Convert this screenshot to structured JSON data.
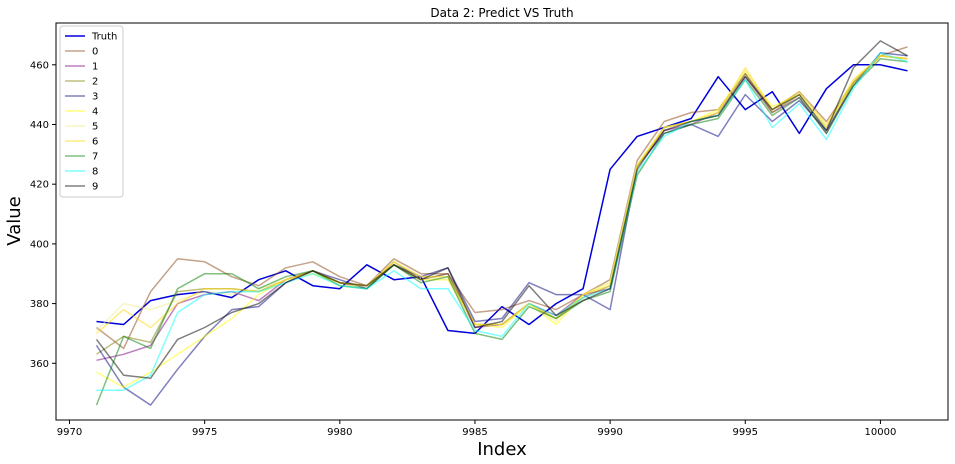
{
  "chart_data": {
    "type": "line",
    "title": "Data 2: Predict VS Truth",
    "xlabel": "Index",
    "ylabel": "Value",
    "xlim": [
      9969.5,
      10002.5
    ],
    "ylim": [
      341,
      474
    ],
    "xticks": [
      9970,
      9975,
      9980,
      9985,
      9990,
      9995,
      10000
    ],
    "yticks": [
      360,
      380,
      400,
      420,
      440,
      460
    ],
    "grid": false,
    "legend_position": "top-left",
    "x": [
      9971,
      9972,
      9973,
      9974,
      9975,
      9976,
      9977,
      9978,
      9979,
      9980,
      9981,
      9982,
      9983,
      9984,
      9985,
      9986,
      9987,
      9988,
      9989,
      9990,
      9991,
      9992,
      9993,
      9994,
      9995,
      9996,
      9997,
      9998,
      9999,
      10000,
      10001
    ],
    "series": [
      {
        "name": "Truth",
        "color": "#0000dd",
        "opacity": 1.0,
        "width": 1.5,
        "values": [
          374,
          373,
          381,
          383,
          384,
          382,
          388,
          391,
          386,
          385,
          393,
          388,
          389,
          371,
          370,
          379,
          373,
          380,
          385,
          425,
          436,
          439,
          442,
          456,
          445,
          451,
          437,
          452,
          460,
          460,
          458
        ]
      },
      {
        "name": "0",
        "color": "#8b4513",
        "opacity": 0.5,
        "width": 1.5,
        "values": [
          372,
          365,
          384,
          395,
          394,
          389,
          386,
          392,
          394,
          389,
          386,
          395,
          390,
          390,
          377,
          378,
          381,
          378,
          383,
          388,
          428,
          441,
          444,
          445,
          457,
          445,
          451,
          441,
          454,
          463,
          466
        ]
      },
      {
        "name": "1",
        "color": "#800080",
        "opacity": 0.5,
        "width": 1.5,
        "values": [
          361,
          363,
          366,
          380,
          383,
          384,
          381,
          388,
          391,
          387,
          386,
          393,
          388,
          390,
          372,
          373,
          380,
          376,
          383,
          385,
          426,
          438,
          440,
          444,
          456,
          444,
          449,
          437,
          454,
          463,
          462
        ]
      },
      {
        "name": "2",
        "color": "#808000",
        "opacity": 0.5,
        "width": 1.5,
        "values": [
          363,
          369,
          367,
          384,
          385,
          385,
          384,
          388,
          391,
          387,
          385,
          394,
          388,
          390,
          373,
          373,
          380,
          375,
          382,
          386,
          426,
          439,
          441,
          443,
          457,
          444,
          450,
          439,
          454,
          463,
          462
        ]
      },
      {
        "name": "3",
        "color": "#000080",
        "opacity": 0.5,
        "width": 1.5,
        "values": [
          366,
          352,
          346,
          358,
          369,
          378,
          379,
          387,
          391,
          388,
          385,
          393,
          389,
          392,
          374,
          375,
          387,
          383,
          383,
          378,
          426,
          437,
          440,
          436,
          450,
          441,
          448,
          438,
          453,
          464,
          463
        ]
      },
      {
        "name": "4",
        "color": "#ffff00",
        "opacity": 0.5,
        "width": 1.5,
        "values": [
          357,
          352,
          357,
          363,
          369,
          375,
          383,
          388,
          390,
          387,
          386,
          393,
          388,
          388,
          373,
          372,
          380,
          373,
          383,
          387,
          426,
          439,
          441,
          445,
          458,
          446,
          450,
          439,
          454,
          463,
          462
        ]
      },
      {
        "name": "5",
        "color": "#eeee88",
        "opacity": 0.5,
        "width": 1.5,
        "values": [
          371,
          380,
          378,
          381,
          384,
          383,
          385,
          388,
          390,
          386,
          386,
          394,
          389,
          388,
          373,
          373,
          380,
          374,
          383,
          387,
          427,
          439,
          441,
          444,
          458,
          445,
          450,
          439,
          455,
          463,
          462
        ]
      },
      {
        "name": "6",
        "color": "#ffd700",
        "opacity": 0.5,
        "width": 1.5,
        "values": [
          370,
          378,
          372,
          380,
          385,
          385,
          384,
          388,
          391,
          387,
          386,
          394,
          389,
          389,
          373,
          373,
          380,
          375,
          383,
          386,
          426,
          439,
          441,
          444,
          459,
          445,
          451,
          440,
          455,
          463,
          462
        ]
      },
      {
        "name": "7",
        "color": "#008000",
        "opacity": 0.5,
        "width": 1.5,
        "values": [
          346,
          369,
          365,
          385,
          390,
          390,
          385,
          389,
          391,
          386,
          385,
          393,
          387,
          389,
          370,
          368,
          379,
          375,
          381,
          384,
          423,
          437,
          440,
          442,
          455,
          443,
          449,
          437,
          453,
          462,
          461
        ]
      },
      {
        "name": "8",
        "color": "#00ffff",
        "opacity": 0.5,
        "width": 1.5,
        "values": [
          351,
          351,
          356,
          377,
          383,
          384,
          384,
          387,
          390,
          386,
          385,
          391,
          385,
          385,
          371,
          369,
          380,
          376,
          382,
          385,
          424,
          436,
          441,
          443,
          455,
          439,
          447,
          435,
          452,
          464,
          461
        ]
      },
      {
        "name": "9",
        "color": "#000000",
        "opacity": 0.5,
        "width": 1.5,
        "values": [
          368,
          356,
          355,
          368,
          372,
          377,
          380,
          387,
          391,
          387,
          386,
          393,
          388,
          392,
          372,
          374,
          386,
          376,
          381,
          385,
          425,
          438,
          441,
          443,
          456,
          445,
          450,
          438,
          459,
          468,
          463
        ]
      }
    ]
  }
}
